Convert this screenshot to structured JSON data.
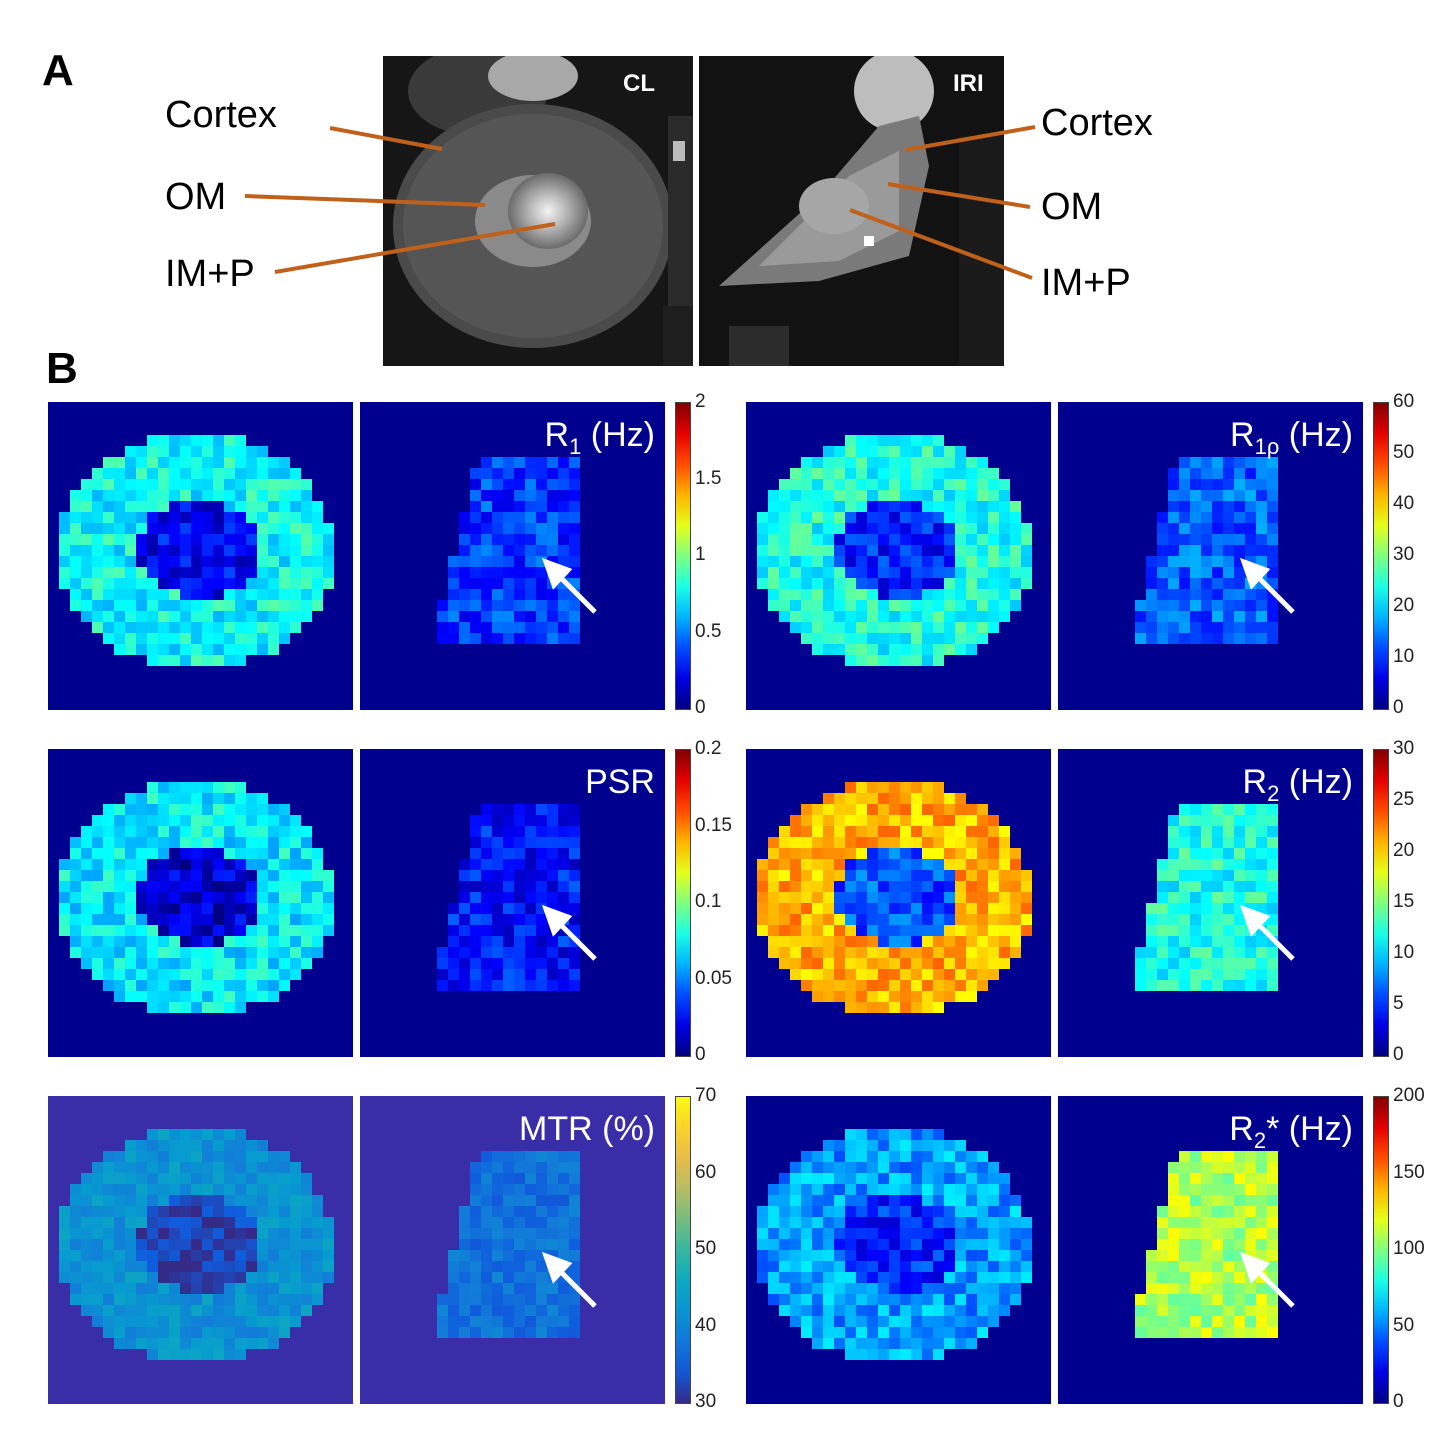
{
  "panel_a": {
    "letter": "A",
    "left_tag": "CL",
    "right_tag": "IRI",
    "left_labels": [
      "Cortex",
      "OM",
      "IM+P"
    ],
    "right_labels": [
      "Cortex",
      "OM",
      "IM+P"
    ],
    "label_line_color": "#c0611b"
  },
  "panel_b": {
    "letter": "B",
    "maps": [
      {
        "id": "r1",
        "title_main": "R",
        "title_sub": "1",
        "title_rest": " (Hz)",
        "colormap": "jet",
        "ticks": [
          "2",
          "1.5",
          "1",
          "0.5",
          "0"
        ]
      },
      {
        "id": "r1rho",
        "title_main": "R",
        "title_sub": "1ρ",
        "title_rest": " (Hz)",
        "colormap": "jet",
        "ticks": [
          "60",
          "50",
          "40",
          "30",
          "20",
          "10",
          "0"
        ]
      },
      {
        "id": "psr",
        "title_main": "PSR",
        "title_sub": "",
        "title_rest": "",
        "colormap": "jet",
        "ticks": [
          "0.2",
          "0.15",
          "0.1",
          "0.05",
          "0"
        ]
      },
      {
        "id": "r2",
        "title_main": "R",
        "title_sub": "2",
        "title_rest": " (Hz)",
        "colormap": "jet",
        "ticks": [
          "30",
          "25",
          "20",
          "15",
          "10",
          "5",
          "0"
        ]
      },
      {
        "id": "mtr",
        "title_main": "MTR (%)",
        "title_sub": "",
        "title_rest": "",
        "colormap": "parula",
        "ticks": [
          "70",
          "60",
          "50",
          "40",
          "30"
        ]
      },
      {
        "id": "r2star",
        "title_main": "R",
        "title_sub": "2",
        "title_rest": "* (Hz)",
        "colormap": "jet",
        "ticks": [
          "200",
          "150",
          "100",
          "50",
          "0"
        ]
      }
    ]
  }
}
